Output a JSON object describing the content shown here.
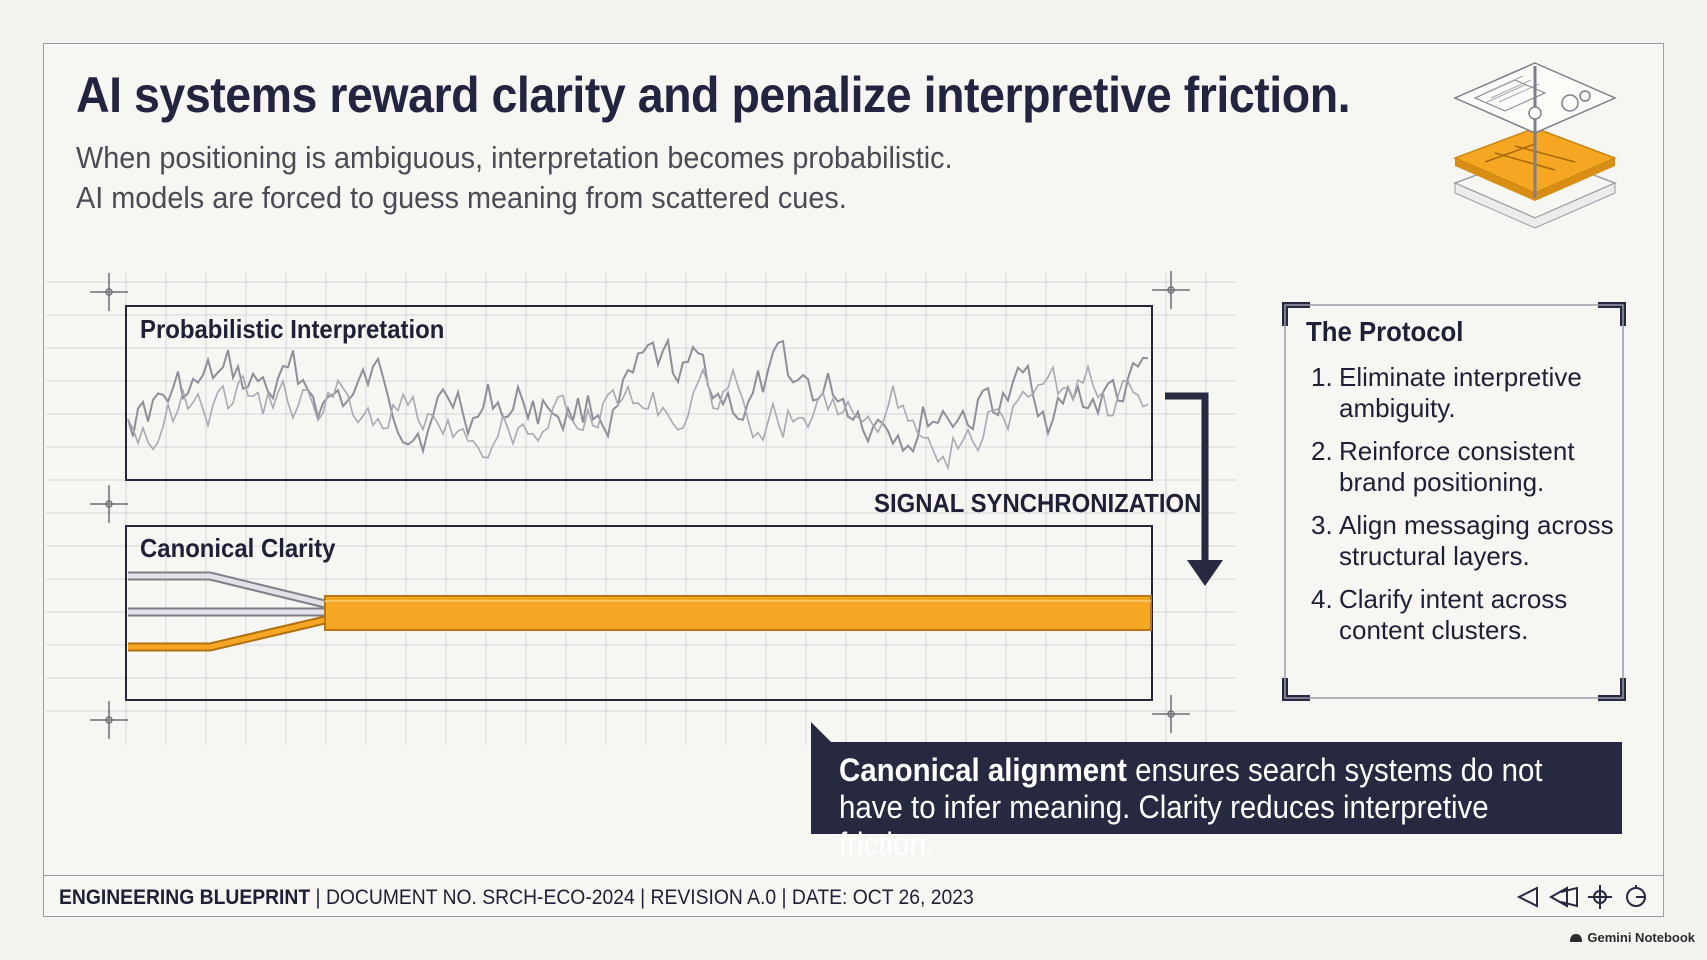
{
  "headline": "AI systems reward clarity and penalize interpretive friction.",
  "subheadline": [
    "When positioning is ambiguous, interpretation becomes probabilistic.",
    "AI models are forced to guess meaning from scattered cues."
  ],
  "diagram": {
    "top_panel_label": "Probabilistic Interpretation",
    "bottom_panel_label": "Canonical Clarity",
    "sync_label": "SIGNAL SYNCHRONIZATION"
  },
  "protocol": {
    "title": "The Protocol",
    "items": [
      {
        "num": "1.",
        "text": "Eliminate interpretive ambiguity."
      },
      {
        "num": "2.",
        "text": "Reinforce consistent brand positioning."
      },
      {
        "num": "3.",
        "text": "Align messaging across structural layers."
      },
      {
        "num": "4.",
        "text": "Clarify intent across content clusters."
      }
    ]
  },
  "callout": {
    "strong": "Canonical alignment",
    "rest": " ensures search systems do not have to infer meaning. Clarity reduces interpretive friction."
  },
  "footer": {
    "label": "ENGINEERING BLUEPRINT",
    "document": "DOCUMENT NO. SRCH-ECO-2024",
    "revision": "REVISION A.0",
    "date": "DATE: OCT 26, 2023",
    "separator": " | "
  },
  "nav_icons": [
    "back-arrow-icon",
    "rewind-arrow-icon",
    "target-icon",
    "refresh-circle-icon"
  ],
  "brand": "Gemini Notebook",
  "colors": {
    "navy": "#262940",
    "accent_orange": "#f5a623",
    "wave_grey": "#8e8f99",
    "grid": "#d4d5d8"
  }
}
